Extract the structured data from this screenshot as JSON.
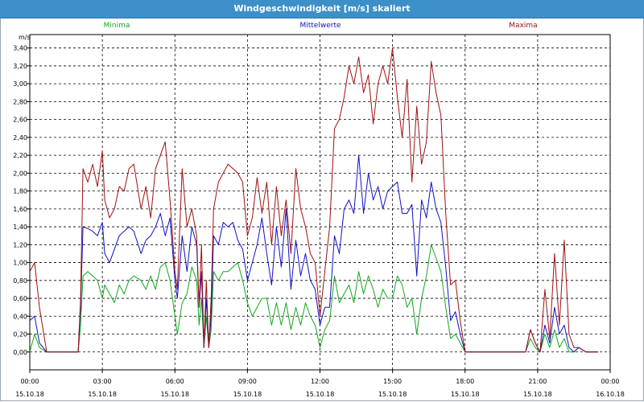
{
  "window": {
    "title": "Windgeschwindigkeit [m/s] skaliert"
  },
  "chart_data": {
    "type": "line",
    "title": "Windgeschwindigkeit [m/s] skaliert",
    "ylabel": "m/s",
    "xlabel": "",
    "ylim": [
      -0.2,
      3.55
    ],
    "xlim": [
      0,
      24
    ],
    "yticks": [
      0.0,
      0.2,
      0.4,
      0.6,
      0.8,
      1.0,
      1.2,
      1.4,
      1.6,
      1.8,
      2.0,
      2.2,
      2.4,
      2.6,
      2.8,
      3.0,
      3.2,
      3.4
    ],
    "ytick_labels": [
      "0,00",
      "0,20",
      "0,40",
      "0,60",
      "0,80",
      "1,00",
      "1,20",
      "1,40",
      "1,60",
      "1,80",
      "2,00",
      "2,20",
      "2,40",
      "2,60",
      "2,80",
      "3,00",
      "3,20",
      "3,40"
    ],
    "xticks": [
      0,
      3,
      6,
      9,
      12,
      15,
      18,
      21,
      24
    ],
    "xtick_times": [
      "00:00",
      "03:00",
      "06:00",
      "09:00",
      "12:00",
      "15:00",
      "18:00",
      "21:00",
      "00:00"
    ],
    "xtick_dates": [
      "15.10.18",
      "15.10.18",
      "15.10.18",
      "15.10.18",
      "15.10.18",
      "15.10.18",
      "15.10.18",
      "15.10.18",
      "16.10.18"
    ],
    "grid": true,
    "legend_position": "top",
    "series": [
      {
        "name": "Minima",
        "color": "#12a81e",
        "x": [
          0,
          0.2,
          0.4,
          0.7,
          1.0,
          1.5,
          2.0,
          2.1,
          2.2,
          2.4,
          2.6,
          2.8,
          3.0,
          3.1,
          3.3,
          3.5,
          3.7,
          3.9,
          4.1,
          4.3,
          4.6,
          4.8,
          5.0,
          5.2,
          5.4,
          5.6,
          5.8,
          6.0,
          6.1,
          6.3,
          6.5,
          6.7,
          6.9,
          7.0,
          7.1,
          7.2,
          7.3,
          7.4,
          7.5,
          7.6,
          7.8,
          8.0,
          8.2,
          8.4,
          8.6,
          8.8,
          9.0,
          9.2,
          9.4,
          9.6,
          9.8,
          10.0,
          10.2,
          10.4,
          10.6,
          10.8,
          11.0,
          11.2,
          11.4,
          11.6,
          11.8,
          12.0,
          12.2,
          12.4,
          12.6,
          12.8,
          13.0,
          13.2,
          13.4,
          13.6,
          13.8,
          14.0,
          14.2,
          14.4,
          14.6,
          14.8,
          15.0,
          15.2,
          15.4,
          15.6,
          15.8,
          16.0,
          16.2,
          16.4,
          16.6,
          16.8,
          17.0,
          17.2,
          17.4,
          17.6,
          17.8,
          18.0,
          20.0,
          20.5,
          20.7,
          20.9,
          21.1,
          21.3,
          21.5,
          21.7,
          21.9,
          22.1,
          22.3,
          22.5,
          22.7,
          23.0,
          23.5
        ],
        "y": [
          0.0,
          0.2,
          0.05,
          0.0,
          0.0,
          0.0,
          0.0,
          0.3,
          0.85,
          0.9,
          0.85,
          0.8,
          0.6,
          0.75,
          0.65,
          0.55,
          0.75,
          0.65,
          0.8,
          0.85,
          0.8,
          0.7,
          0.85,
          0.7,
          0.95,
          1.0,
          0.8,
          0.4,
          0.2,
          0.55,
          0.65,
          0.95,
          0.8,
          0.3,
          0.6,
          0.05,
          0.4,
          0.05,
          0.25,
          0.9,
          0.8,
          0.9,
          0.9,
          0.95,
          1.0,
          0.8,
          0.55,
          0.4,
          0.5,
          0.6,
          0.6,
          0.3,
          0.55,
          0.3,
          0.55,
          0.25,
          0.5,
          0.3,
          0.55,
          0.4,
          0.3,
          0.05,
          0.25,
          0.35,
          0.85,
          0.55,
          0.65,
          0.75,
          0.55,
          0.9,
          0.65,
          0.85,
          0.7,
          0.5,
          0.7,
          0.6,
          0.6,
          0.85,
          0.75,
          0.5,
          0.6,
          0.2,
          0.6,
          0.85,
          1.2,
          1.05,
          0.9,
          0.5,
          0.15,
          0.2,
          0.1,
          0.0,
          0.0,
          0.0,
          0.15,
          0.05,
          0.0,
          0.2,
          0.05,
          0.25,
          0.05,
          0.15,
          0.0,
          0.0,
          0.05,
          0.0,
          0.0
        ]
      },
      {
        "name": "Mittelwerte",
        "color": "#1010c8",
        "x": [
          0,
          0.2,
          0.4,
          0.7,
          1.0,
          1.5,
          2.0,
          2.1,
          2.2,
          2.4,
          2.6,
          2.8,
          3.0,
          3.1,
          3.3,
          3.5,
          3.7,
          3.9,
          4.1,
          4.3,
          4.6,
          4.8,
          5.0,
          5.2,
          5.4,
          5.6,
          5.8,
          6.0,
          6.1,
          6.3,
          6.5,
          6.7,
          6.9,
          7.0,
          7.1,
          7.2,
          7.3,
          7.4,
          7.5,
          7.6,
          7.8,
          8.0,
          8.2,
          8.4,
          8.6,
          8.8,
          9.0,
          9.2,
          9.4,
          9.6,
          9.8,
          10.0,
          10.2,
          10.4,
          10.6,
          10.8,
          11.0,
          11.2,
          11.4,
          11.6,
          11.8,
          12.0,
          12.2,
          12.4,
          12.6,
          12.8,
          13.0,
          13.2,
          13.4,
          13.6,
          13.8,
          14.0,
          14.2,
          14.4,
          14.6,
          14.8,
          15.0,
          15.2,
          15.4,
          15.6,
          15.8,
          16.0,
          16.2,
          16.4,
          16.6,
          16.8,
          17.0,
          17.2,
          17.4,
          17.6,
          17.8,
          18.0,
          20.0,
          20.5,
          20.7,
          20.9,
          21.1,
          21.3,
          21.5,
          21.7,
          21.9,
          22.1,
          22.3,
          22.5,
          22.7,
          23.0,
          23.5
        ],
        "y": [
          0.35,
          0.4,
          0.1,
          0.0,
          0.0,
          0.0,
          0.0,
          0.5,
          1.4,
          1.38,
          1.35,
          1.3,
          1.45,
          1.1,
          1.0,
          1.15,
          1.3,
          1.35,
          1.4,
          1.35,
          1.1,
          1.25,
          1.3,
          1.4,
          1.55,
          1.3,
          1.5,
          0.8,
          0.6,
          1.3,
          0.9,
          1.4,
          1.2,
          0.5,
          0.9,
          0.05,
          0.6,
          0.05,
          0.4,
          1.3,
          1.2,
          1.45,
          1.4,
          1.45,
          1.25,
          1.15,
          0.8,
          1.0,
          1.2,
          1.5,
          1.1,
          0.75,
          1.4,
          0.95,
          1.6,
          0.7,
          1.25,
          0.85,
          1.1,
          0.8,
          0.7,
          0.3,
          0.5,
          0.5,
          1.3,
          1.1,
          1.6,
          1.7,
          1.55,
          2.2,
          1.55,
          2.0,
          1.7,
          1.85,
          1.6,
          1.8,
          1.85,
          1.9,
          1.55,
          1.55,
          1.65,
          0.85,
          1.7,
          1.5,
          1.9,
          1.6,
          1.45,
          0.95,
          0.35,
          0.45,
          0.2,
          0.0,
          0.0,
          0.0,
          0.25,
          0.1,
          0.0,
          0.3,
          0.1,
          0.5,
          0.2,
          0.3,
          0.05,
          0.0,
          0.05,
          0.0,
          0.0
        ]
      },
      {
        "name": "Maxima",
        "color": "#a01010",
        "x": [
          0,
          0.2,
          0.4,
          0.7,
          1.0,
          1.5,
          2.0,
          2.1,
          2.2,
          2.4,
          2.6,
          2.8,
          3.0,
          3.1,
          3.3,
          3.5,
          3.7,
          3.9,
          4.1,
          4.3,
          4.6,
          4.8,
          5.0,
          5.2,
          5.4,
          5.6,
          5.8,
          6.0,
          6.1,
          6.3,
          6.5,
          6.7,
          6.9,
          7.0,
          7.1,
          7.2,
          7.3,
          7.4,
          7.5,
          7.6,
          7.8,
          8.0,
          8.2,
          8.4,
          8.6,
          8.8,
          9.0,
          9.2,
          9.4,
          9.6,
          9.8,
          10.0,
          10.2,
          10.4,
          10.6,
          10.8,
          11.0,
          11.2,
          11.4,
          11.6,
          11.8,
          12.0,
          12.2,
          12.4,
          12.6,
          12.8,
          13.0,
          13.2,
          13.4,
          13.6,
          13.8,
          14.0,
          14.2,
          14.4,
          14.6,
          14.8,
          15.0,
          15.2,
          15.4,
          15.6,
          15.8,
          16.0,
          16.2,
          16.4,
          16.6,
          16.8,
          17.0,
          17.2,
          17.4,
          17.6,
          17.8,
          18.0,
          20.0,
          20.5,
          20.7,
          20.9,
          21.1,
          21.3,
          21.5,
          21.7,
          21.9,
          22.1,
          22.3,
          22.5,
          22.7,
          23.0,
          23.5
        ],
        "y": [
          0.9,
          1.0,
          0.5,
          0.0,
          0.0,
          0.0,
          0.0,
          0.6,
          2.05,
          1.9,
          2.1,
          1.85,
          2.25,
          1.7,
          1.5,
          1.6,
          1.85,
          1.8,
          2.05,
          2.1,
          1.6,
          1.85,
          1.5,
          2.05,
          2.2,
          2.35,
          1.7,
          0.9,
          0.7,
          2.05,
          1.4,
          1.6,
          1.3,
          0.5,
          1.2,
          0.05,
          0.8,
          0.05,
          0.6,
          1.6,
          1.9,
          2.0,
          2.1,
          2.05,
          2.0,
          1.9,
          1.3,
          1.5,
          1.95,
          1.55,
          1.9,
          1.2,
          1.85,
          1.3,
          1.7,
          1.1,
          2.05,
          1.6,
          1.4,
          1.1,
          1.0,
          0.4,
          0.9,
          1.4,
          2.5,
          2.6,
          2.85,
          3.2,
          3.0,
          3.3,
          2.9,
          3.1,
          2.55,
          3.0,
          3.2,
          3.0,
          3.4,
          2.85,
          2.4,
          3.05,
          1.9,
          2.75,
          2.1,
          2.35,
          3.25,
          2.9,
          2.65,
          1.55,
          0.75,
          0.8,
          0.35,
          0.0,
          0.0,
          0.0,
          0.25,
          0.1,
          0.0,
          0.7,
          0.15,
          1.1,
          0.3,
          1.25,
          0.2,
          0.05,
          0.05,
          0.0,
          0.0
        ]
      }
    ]
  }
}
